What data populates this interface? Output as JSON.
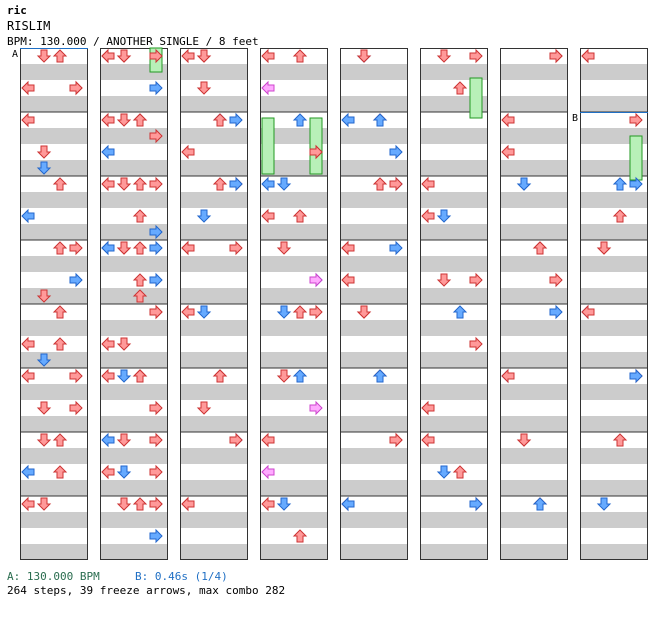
{
  "song": {
    "artist": "ric",
    "title": "RISLIM",
    "info": "BPM: 130.000 / ANOTHER SINGLE / 8 feet"
  },
  "colors": {
    "stripe": "#cccccc",
    "arrow_4th": "#ff9999",
    "arrow_8th": "#66aaff",
    "arrow_16th": "#ffaaff",
    "freeze": "#b8f0b8"
  },
  "markers": [
    {
      "label": "A",
      "column": 0,
      "beat": 0
    },
    {
      "label": "B",
      "column": 7,
      "beat": 4
    }
  ],
  "footer": {
    "bpm_a": "A: 130.000 BPM",
    "bpm_b": "B: 0.46s (1/4)",
    "stats": "264 steps, 39 freeze arrows, max combo 282"
  }
}
